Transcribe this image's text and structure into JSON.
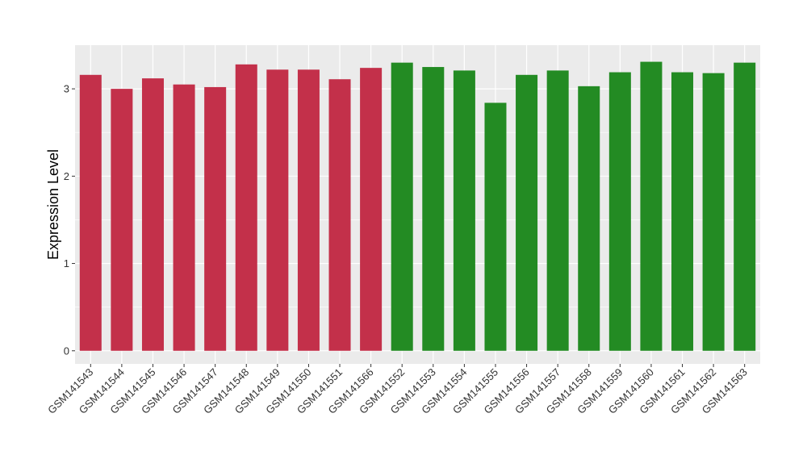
{
  "chart_data": {
    "type": "bar",
    "title": "",
    "xlabel": "",
    "ylabel": "Expression Level",
    "ylim": [
      -0.15,
      3.5
    ],
    "yticks": [
      0,
      1,
      2,
      3
    ],
    "grid": true,
    "legend": "none",
    "colors": {
      "group_1": "#c3304a",
      "group_2": "#238b23",
      "panel_background": "#ebebeb",
      "grid_line": "#ffffff"
    },
    "categories": [
      "GSM141543",
      "GSM141544",
      "GSM141545",
      "GSM141546",
      "GSM141547",
      "GSM141548",
      "GSM141549",
      "GSM141550",
      "GSM141551",
      "GSM141566",
      "GSM141552",
      "GSM141553",
      "GSM141554",
      "GSM141555",
      "GSM141556",
      "GSM141557",
      "GSM141558",
      "GSM141559",
      "GSM141560",
      "GSM141561",
      "GSM141562",
      "GSM141563"
    ],
    "values": [
      3.16,
      3.0,
      3.12,
      3.05,
      3.02,
      3.28,
      3.22,
      3.22,
      3.11,
      3.24,
      3.3,
      3.25,
      3.21,
      2.84,
      3.16,
      3.21,
      3.03,
      3.19,
      3.31,
      3.19,
      3.18,
      3.3
    ],
    "bar_groups": [
      "group_1",
      "group_1",
      "group_1",
      "group_1",
      "group_1",
      "group_1",
      "group_1",
      "group_1",
      "group_1",
      "group_1",
      "group_2",
      "group_2",
      "group_2",
      "group_2",
      "group_2",
      "group_2",
      "group_2",
      "group_2",
      "group_2",
      "group_2",
      "group_2",
      "group_2"
    ]
  }
}
